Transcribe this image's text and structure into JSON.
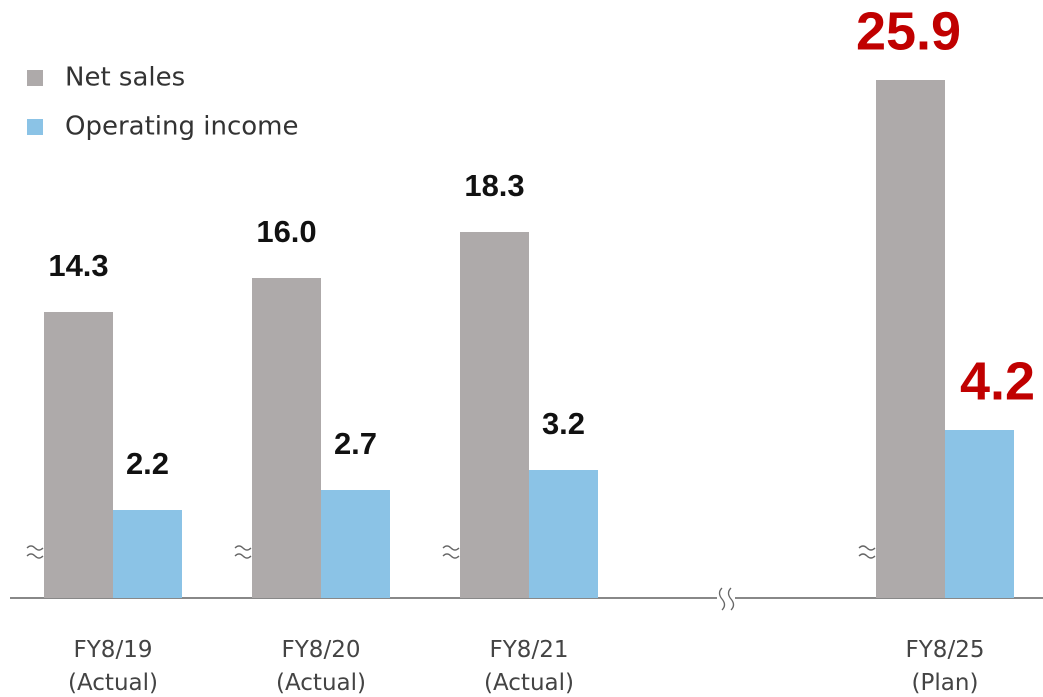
{
  "chart_data": {
    "type": "bar",
    "categories": [
      [
        "FY8/19",
        "(Actual)"
      ],
      [
        "FY8/20",
        "(Actual)"
      ],
      [
        "FY8/21",
        "(Actual)"
      ],
      [
        "FY8/25",
        "(Plan)"
      ]
    ],
    "series": [
      {
        "name": "Net sales",
        "color": "#aeaaaa",
        "values": [
          14.3,
          16.0,
          18.3,
          25.9
        ],
        "value_labels": [
          "14.3",
          "16.0",
          "18.3",
          "25.9"
        ]
      },
      {
        "name": "Operating income",
        "color": "#8bc3e6",
        "axis": "y2",
        "values": [
          2.2,
          2.7,
          3.2,
          4.2
        ]
      }
    ],
    "ylim": [
      0,
      28
    ],
    "y2lim": [
      0,
      14
    ],
    "legend": "upper left"
  }
}
